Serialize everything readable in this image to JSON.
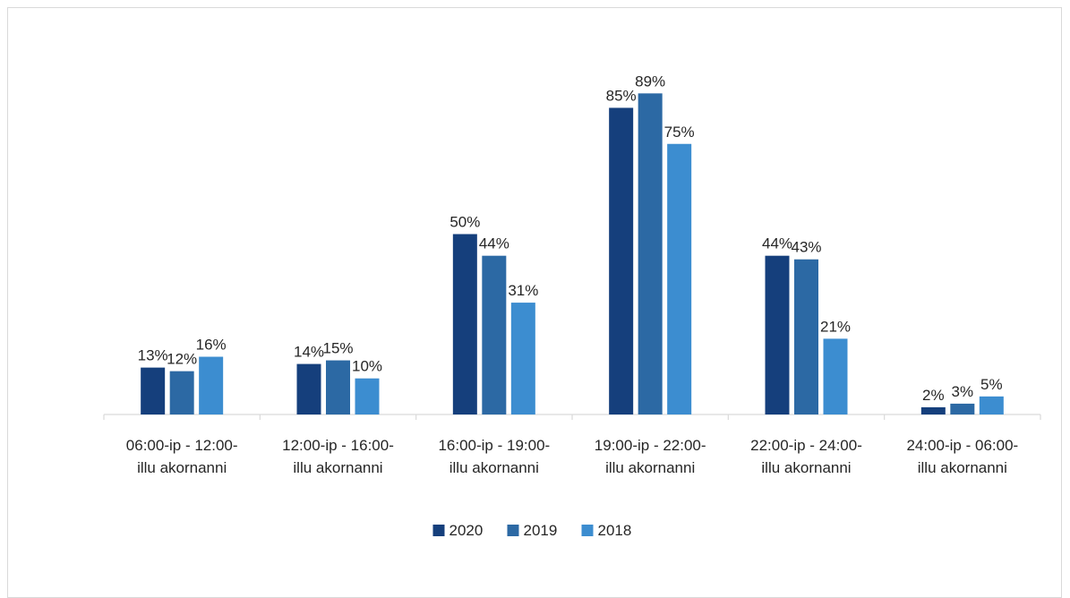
{
  "chart_data": {
    "type": "bar",
    "title": "",
    "xlabel": "",
    "ylabel": "",
    "ylim": [
      0,
      100
    ],
    "grid": false,
    "legend_position": "bottom",
    "categories": [
      [
        "06:00-ip - 12:00-",
        "illu akornanni"
      ],
      [
        "12:00-ip - 16:00-",
        "illu akornanni"
      ],
      [
        "16:00-ip - 19:00-",
        "illu akornanni"
      ],
      [
        "19:00-ip - 22:00-",
        "illu akornanni"
      ],
      [
        "22:00-ip - 24:00-",
        "illu akornanni"
      ],
      [
        "24:00-ip - 06:00-",
        "illu akornanni"
      ]
    ],
    "series": [
      {
        "name": "2020",
        "color": "#153f7c",
        "values": [
          13,
          14,
          50,
          85,
          44,
          2
        ],
        "labels": [
          "13%",
          "14%",
          "50%",
          "85%",
          "44%",
          "2%"
        ]
      },
      {
        "name": "2019",
        "color": "#2c69a4",
        "values": [
          12,
          15,
          44,
          89,
          43,
          3
        ],
        "labels": [
          "12%",
          "15%",
          "44%",
          "89%",
          "43%",
          "3%"
        ]
      },
      {
        "name": "2018",
        "color": "#3c8dd0",
        "values": [
          16,
          10,
          31,
          75,
          21,
          5
        ],
        "labels": [
          "16%",
          "10%",
          "31%",
          "75%",
          "21%",
          "5%"
        ]
      }
    ]
  }
}
